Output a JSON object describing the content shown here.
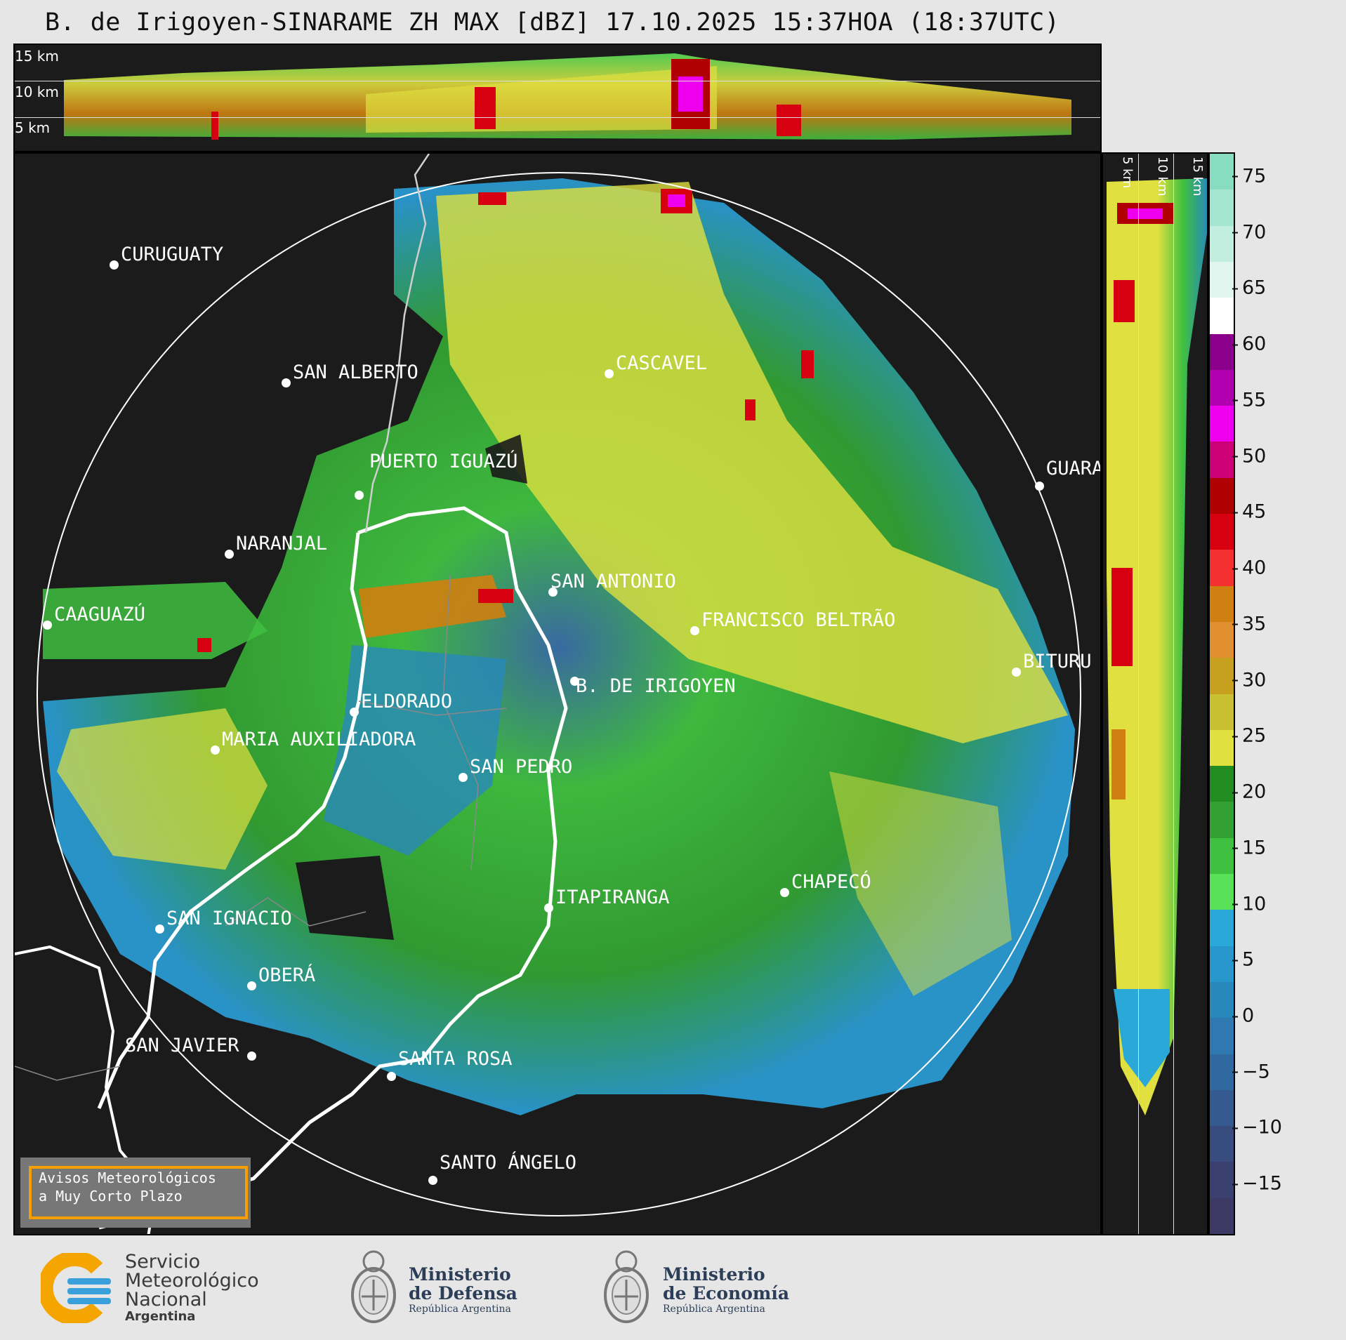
{
  "title": "B. de Irigoyen-SINARAME ZH MAX [dBZ] 17.10.2025 15:37HOA (18:37UTC)",
  "top_panel": {
    "height_labels": [
      "15 km",
      "10 km",
      "5 km"
    ]
  },
  "side_panel": {
    "height_labels": [
      "5 km",
      "10 km",
      "15 km"
    ]
  },
  "colorbar": {
    "unit": "dBZ",
    "ticks": [
      "75",
      "70",
      "65",
      "60",
      "55",
      "50",
      "45",
      "40",
      "35",
      "30",
      "25",
      "20",
      "15",
      "10",
      "5",
      "0",
      "−5",
      "−10",
      "−15"
    ],
    "segments": [
      "#88dcc0",
      "#a4e6d0",
      "#c2eee0",
      "#e0f6ee",
      "#ffffff",
      "#8b008b",
      "#b000b0",
      "#ee00ee",
      "#cc0077",
      "#b00000",
      "#d60010",
      "#f53030",
      "#d08010",
      "#e09030",
      "#c8a020",
      "#c8c030",
      "#e0e040",
      "#228b22",
      "#32a032",
      "#40c040",
      "#58e058",
      "#2aa8d8",
      "#2898cc",
      "#2888bc",
      "#3078b0",
      "#3068a0",
      "#355a90",
      "#384c80",
      "#3a4070",
      "#3c3a65"
    ]
  },
  "cities": [
    {
      "name": "CURUGUATY"
    },
    {
      "name": "SAN ALBERTO"
    },
    {
      "name": "CAAGUAZÚ"
    },
    {
      "name": "PUERTO IGUAZÚ"
    },
    {
      "name": "NARANJAL"
    },
    {
      "name": "CASCAVEL"
    },
    {
      "name": "GUARA"
    },
    {
      "name": "SAN ANTONIO"
    },
    {
      "name": "FRANCISCO BELTRÃO"
    },
    {
      "name": "B. DE IRIGOYEN"
    },
    {
      "name": "BITURU"
    },
    {
      "name": "ELDORADO"
    },
    {
      "name": "MARIA AUXILIADORA"
    },
    {
      "name": "SAN PEDRO"
    },
    {
      "name": "ITAPIRANGA"
    },
    {
      "name": "CHAPECÓ"
    },
    {
      "name": "SAN IGNACIO"
    },
    {
      "name": "OBERÁ"
    },
    {
      "name": "SAN JAVIER"
    },
    {
      "name": "SANTA ROSA"
    },
    {
      "name": "SANTO ÁNGELO"
    }
  ],
  "avisos": {
    "line1": "Avisos Meteorológicos",
    "line2": "a Muy Corto Plazo"
  },
  "footer": {
    "smn_line1": "Servicio",
    "smn_line2": "Meteorológico",
    "smn_line3": "Nacional",
    "smn_line4": "Argentina",
    "defensa_line1": "Ministerio",
    "defensa_line2": "de Defensa",
    "defensa_line3": "República Argentina",
    "economia_line1": "Ministerio",
    "economia_line2": "de Economía",
    "economia_line3": "República Argentina"
  }
}
